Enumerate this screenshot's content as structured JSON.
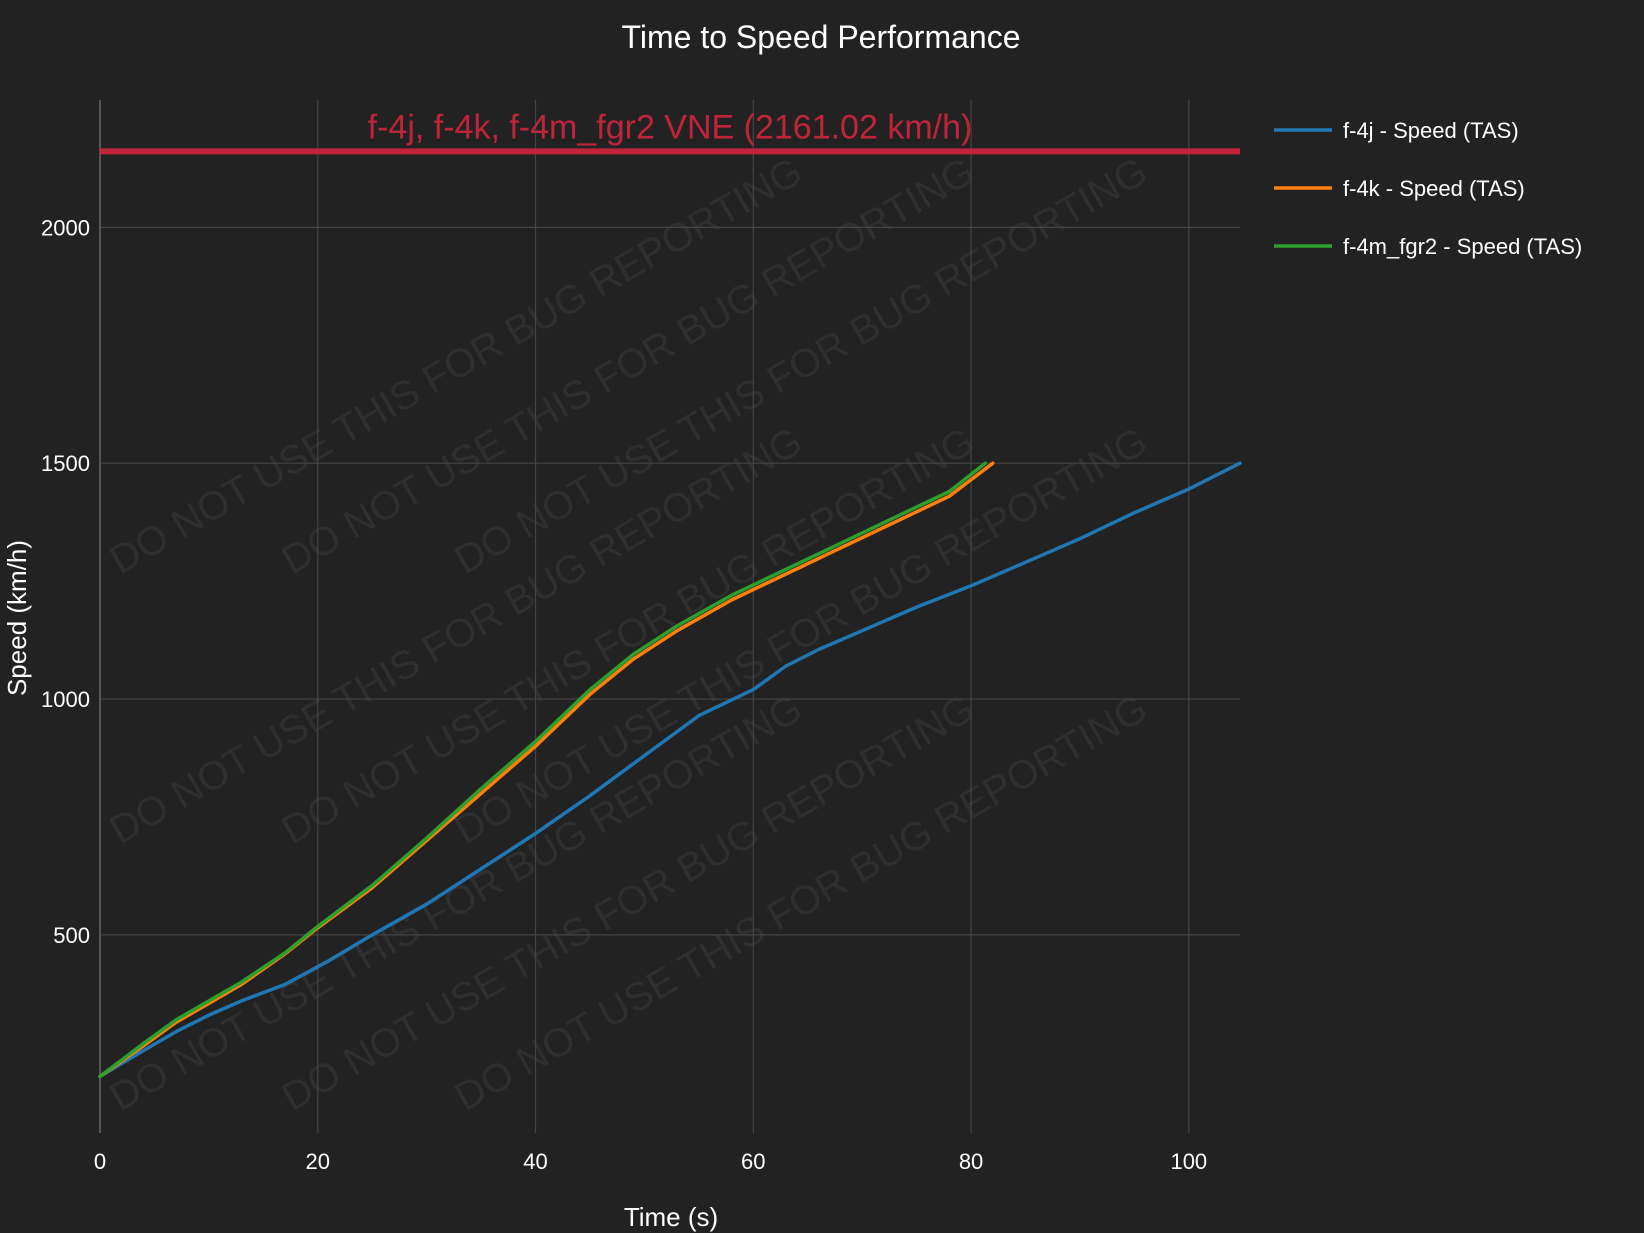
{
  "chart_data": {
    "type": "line",
    "title": "Time to Speed Performance",
    "xlabel": "Time (s)",
    "ylabel": "Speed (km/h)",
    "xlim": [
      0,
      104.7
    ],
    "ylim": [
      80,
      2270
    ],
    "x_ticks": [
      0,
      20,
      40,
      60,
      80,
      100
    ],
    "y_ticks": [
      500,
      1000,
      1500,
      2000
    ],
    "grid": true,
    "legend_position": "right",
    "watermark_text": "DO NOT USE THIS FOR BUG REPORTING",
    "reference_line": {
      "label": "f-4j, f-4k, f-4m_fgr2 VNE (2161.02 km/h)",
      "y": 2161.02,
      "color": "#c0243b"
    },
    "series": [
      {
        "name": "f-4j - Speed (TAS)",
        "color": "#1f77b4",
        "x": [
          0,
          4,
          7,
          10,
          13,
          17,
          21,
          25,
          30,
          35,
          40,
          45,
          50,
          55,
          60,
          63,
          66,
          70,
          75,
          80,
          85,
          90,
          95,
          100,
          104.7
        ],
        "y": [
          200,
          255,
          295,
          330,
          360,
          395,
          445,
          500,
          565,
          640,
          715,
          795,
          880,
          965,
          1020,
          1070,
          1105,
          1145,
          1195,
          1240,
          1290,
          1340,
          1395,
          1445,
          1500
        ]
      },
      {
        "name": "f-4k - Speed (TAS)",
        "color": "#ff7f0e",
        "x": [
          0,
          4,
          7,
          10,
          13,
          17,
          20,
          25,
          30,
          35,
          40,
          45,
          49,
          53,
          58,
          63,
          68,
          73,
          78,
          82
        ],
        "y": [
          200,
          265,
          315,
          355,
          395,
          460,
          515,
          600,
          700,
          800,
          900,
          1010,
          1085,
          1145,
          1210,
          1265,
          1320,
          1375,
          1430,
          1500
        ]
      },
      {
        "name": "f-4m_fgr2 - Speed (TAS)",
        "color": "#2ca02c",
        "x": [
          0,
          4,
          7,
          10,
          13,
          17,
          20,
          25,
          30,
          35,
          40,
          45,
          49,
          53,
          58,
          63,
          68,
          73,
          78,
          81.3
        ],
        "y": [
          200,
          270,
          320,
          360,
          400,
          462,
          518,
          605,
          705,
          810,
          910,
          1020,
          1095,
          1155,
          1220,
          1275,
          1330,
          1385,
          1440,
          1500
        ]
      }
    ]
  }
}
